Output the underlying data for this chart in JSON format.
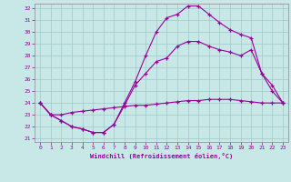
{
  "xlabel": "Windchill (Refroidissement éolien,°C)",
  "bg_color": "#c8e8e8",
  "grid_color": "#a0c8c8",
  "line_color": "#990099",
  "xlim": [
    -0.5,
    23.5
  ],
  "ylim": [
    20.7,
    32.4
  ],
  "xticks": [
    0,
    1,
    2,
    3,
    4,
    5,
    6,
    7,
    8,
    9,
    10,
    11,
    12,
    13,
    14,
    15,
    16,
    17,
    18,
    19,
    20,
    21,
    22,
    23
  ],
  "yticks": [
    21,
    22,
    23,
    24,
    25,
    26,
    27,
    28,
    29,
    30,
    31,
    32
  ],
  "line1_x": [
    0,
    1,
    2,
    3,
    4,
    5,
    6,
    7,
    8,
    9,
    10,
    11,
    12,
    13,
    14,
    15,
    16,
    17,
    18,
    19,
    20,
    21,
    22,
    23
  ],
  "line1_y": [
    24.0,
    23.0,
    23.0,
    23.2,
    23.3,
    23.4,
    23.5,
    23.6,
    23.7,
    23.8,
    23.8,
    23.9,
    24.0,
    24.1,
    24.2,
    24.2,
    24.3,
    24.3,
    24.3,
    24.2,
    24.1,
    24.0,
    24.0,
    24.0
  ],
  "line2_x": [
    0,
    1,
    2,
    3,
    4,
    5,
    6,
    7,
    8,
    9,
    10,
    11,
    12,
    13,
    14,
    15,
    16,
    17,
    18,
    19,
    20,
    21,
    22,
    23
  ],
  "line2_y": [
    24.0,
    23.0,
    22.5,
    22.0,
    21.8,
    21.5,
    21.5,
    22.2,
    24.0,
    25.8,
    28.0,
    30.0,
    31.2,
    31.5,
    32.2,
    32.2,
    31.5,
    30.8,
    30.2,
    29.8,
    29.5,
    26.5,
    25.0,
    24.0
  ],
  "line3_x": [
    0,
    1,
    2,
    3,
    4,
    5,
    6,
    7,
    8,
    9,
    10,
    11,
    12,
    13,
    14,
    15,
    16,
    17,
    18,
    19,
    20,
    21,
    22,
    23
  ],
  "line3_y": [
    24.0,
    23.0,
    22.5,
    22.0,
    21.8,
    21.5,
    21.5,
    22.2,
    23.8,
    25.5,
    26.5,
    27.5,
    27.8,
    28.8,
    29.2,
    29.2,
    28.8,
    28.5,
    28.3,
    28.0,
    28.5,
    26.5,
    25.5,
    24.0
  ]
}
